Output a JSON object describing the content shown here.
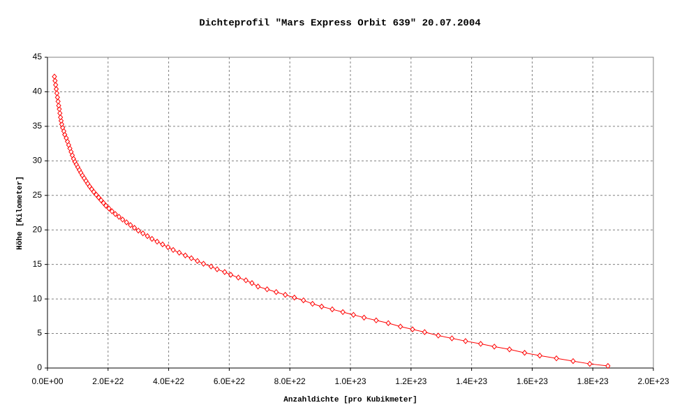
{
  "chart_data": {
    "type": "line",
    "title": "Dichteprofil \"Mars Express Orbit 639\" 20.07.2004",
    "x_label": "Anzahldichte [pro Kubikmeter]",
    "y_label": "Höhe [Kilometer]",
    "x": [
      1.85e+23,
      1.79e+23,
      1.735e+23,
      1.68e+23,
      1.625e+23,
      1.575e+23,
      1.525e+23,
      1.475e+23,
      1.43e+23,
      1.38e+23,
      1.335e+23,
      1.29e+23,
      1.245e+23,
      1.205e+23,
      1.165e+23,
      1.125e+23,
      1.085e+23,
      1.045e+23,
      1.01e+23,
      9.75e+22,
      9.4e+22,
      9.05e+22,
      8.75e+22,
      8.45e+22,
      8.15e+22,
      7.85e+22,
      7.55e+22,
      7.25e+22,
      6.95e+22,
      6.75e+22,
      6.55e+22,
      6.3e+22,
      6.05e+22,
      5.85e+22,
      5.6e+22,
      5.4e+22,
      5.15e+22,
      4.95e+22,
      4.75e+22,
      4.55e+22,
      4.35e+22,
      4.15e+22,
      3.98e+22,
      3.8e+22,
      3.62e+22,
      3.45e+22,
      3.3e+22,
      3.15e+22,
      3e+22,
      2.87e+22,
      2.74e+22,
      2.61e+22,
      2.48e+22,
      2.36e+22,
      2.24e+22,
      2.13e+22,
      2.03e+22,
      1.93e+22,
      1.85e+22,
      1.77e+22,
      1.69e+22,
      1.61e+22,
      1.53e+22,
      1.46e+22,
      1.39e+22,
      1.33e+22,
      1.27e+22,
      1.21e+22,
      1.15e+22,
      1.1e+22,
      1.05e+22,
      1e+22,
      9.5e+21,
      9e+21,
      8.6e+21,
      8.2e+21,
      7.8e+21,
      7.4e+21,
      7e+21,
      6.6e+21,
      6.2e+21,
      5.7e+21,
      5.4e+21,
      5e+21,
      4.7e+21,
      4.5e+21,
      4.3e+21,
      4.1e+21,
      3.9e+21,
      3.7e+21,
      3.5e+21,
      3.3e+21,
      3.1e+21,
      2.9e+21,
      2.7e+21,
      2.5e+21,
      2.3e+21
    ],
    "series": [
      {
        "name": "Höhe",
        "color": "#ff0000",
        "values": [
          0.3,
          0.6,
          1.0,
          1.4,
          1.8,
          2.2,
          2.7,
          3.1,
          3.5,
          3.9,
          4.3,
          4.7,
          5.2,
          5.6,
          6.0,
          6.5,
          6.9,
          7.3,
          7.7,
          8.1,
          8.5,
          8.9,
          9.3,
          9.8,
          10.2,
          10.6,
          11.0,
          11.4,
          11.8,
          12.3,
          12.7,
          13.1,
          13.5,
          13.9,
          14.3,
          14.7,
          15.1,
          15.5,
          15.9,
          16.3,
          16.7,
          17.1,
          17.5,
          17.9,
          18.3,
          18.7,
          19.1,
          19.5,
          19.9,
          20.3,
          20.7,
          21.1,
          21.5,
          21.9,
          22.3,
          22.7,
          23.1,
          23.5,
          23.9,
          24.3,
          24.7,
          25.1,
          25.5,
          25.9,
          26.3,
          26.7,
          27.1,
          27.5,
          27.9,
          28.3,
          28.7,
          29.1,
          29.5,
          29.9,
          30.3,
          30.8,
          31.3,
          31.8,
          32.3,
          32.8,
          33.3,
          33.8,
          34.3,
          34.8,
          35.3,
          35.8,
          36.3,
          36.9,
          37.5,
          38.0,
          38.6,
          39.2,
          39.8,
          40.4,
          41.0,
          41.6,
          42.2
        ]
      }
    ],
    "xlim": [
      0,
      2e+23
    ],
    "xticks": [
      {
        "value": 0,
        "label": "0.0E+00"
      },
      {
        "value": 2e+22,
        "label": "2.0E+22"
      },
      {
        "value": 4e+22,
        "label": "4.0E+22"
      },
      {
        "value": 6e+22,
        "label": "6.0E+22"
      },
      {
        "value": 8e+22,
        "label": "8.0E+22"
      },
      {
        "value": 1e+23,
        "label": "1.0E+23"
      },
      {
        "value": 1.2e+23,
        "label": "1.2E+23"
      },
      {
        "value": 1.4e+23,
        "label": "1.4E+23"
      },
      {
        "value": 1.6e+23,
        "label": "1.6E+23"
      },
      {
        "value": 1.8e+23,
        "label": "1.8E+23"
      },
      {
        "value": 2e+23,
        "label": "2.0E+23"
      }
    ],
    "ylim": [
      0,
      45
    ],
    "yticks": [
      0,
      5,
      10,
      15,
      20,
      25,
      30,
      35,
      40,
      45
    ],
    "grid": true
  }
}
